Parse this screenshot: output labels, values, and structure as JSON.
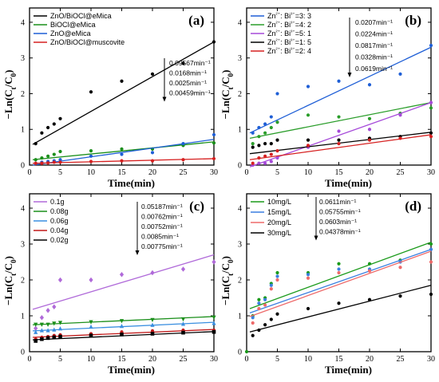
{
  "chart_data": [
    {
      "panel": "(a)",
      "type": "scatter",
      "xlabel": "Time(min)",
      "ylabel": "-Ln(Ct/C0)",
      "xlim": [
        0,
        30
      ],
      "ylim": [
        0,
        4.4
      ],
      "xticks": [
        0,
        5,
        10,
        15,
        20,
        25,
        30
      ],
      "yticks": [
        0,
        1,
        2,
        3,
        4
      ],
      "legend_position": "top-left",
      "series": [
        {
          "name": "ZnO/BiOCl@eMica",
          "color": "#000000",
          "marker": "circle",
          "x": [
            1,
            2,
            3,
            4,
            5,
            10,
            15,
            20,
            25,
            30
          ],
          "y": [
            0.6,
            0.9,
            1.05,
            1.15,
            1.3,
            2.05,
            2.35,
            2.55,
            2.85,
            3.45
          ],
          "fit": [
            0.58,
            3.45
          ]
        },
        {
          "name": "BiOCl@eMica",
          "color": "#1a8f1a",
          "marker": "circle",
          "x": [
            1,
            2,
            3,
            4,
            5,
            10,
            15,
            20,
            25,
            30
          ],
          "y": [
            0.15,
            0.2,
            0.25,
            0.3,
            0.38,
            0.4,
            0.45,
            0.45,
            0.55,
            0.62
          ],
          "fit": [
            0.15,
            0.65
          ]
        },
        {
          "name": "ZnO@eMica",
          "color": "#1f5fd6",
          "marker": "circle",
          "x": [
            1,
            2,
            3,
            4,
            5,
            10,
            15,
            20,
            25,
            30
          ],
          "y": [
            0.05,
            0.08,
            0.1,
            0.12,
            0.15,
            0.25,
            0.3,
            0.35,
            0.6,
            0.85
          ],
          "fit": [
            0.0,
            0.72
          ]
        },
        {
          "name": "ZnO/BiOCl@muscovite",
          "color": "#d62020",
          "marker": "circle",
          "x": [
            1,
            2,
            3,
            4,
            5,
            10,
            15,
            20,
            25,
            30
          ],
          "y": [
            0.05,
            0.05,
            0.06,
            0.08,
            0.08,
            0.1,
            0.12,
            0.12,
            0.15,
            0.18
          ],
          "fit": [
            0.05,
            0.18
          ]
        }
      ],
      "annotations": [
        "0.09567min⁻¹",
        "0.0168min⁻¹",
        "0.0025min⁻¹",
        "0.00459min⁻¹"
      ]
    },
    {
      "panel": "(b)",
      "type": "scatter",
      "xlabel": "Time(min)",
      "ylabel": "-Ln(Ct/C0)",
      "xlim": [
        0,
        30
      ],
      "ylim": [
        0,
        4.4
      ],
      "xticks": [
        0,
        5,
        10,
        15,
        20,
        25,
        30
      ],
      "yticks": [
        0,
        1,
        2,
        3,
        4
      ],
      "legend_position": "top-left",
      "series": [
        {
          "name": "Zn²⁺: Bi³⁺=3: 3",
          "color": "#1f5fd6",
          "marker": "circle",
          "x": [
            1,
            2,
            3,
            4,
            5,
            10,
            15,
            20,
            25,
            30
          ],
          "y": [
            0.9,
            1.05,
            1.15,
            1.35,
            2.0,
            2.2,
            2.35,
            2.25,
            2.55,
            3.35
          ],
          "fit": [
            0.9,
            3.3
          ]
        },
        {
          "name": "Zn²⁺: Bi³⁺=4: 2",
          "color": "#2a9d2a",
          "marker": "circle",
          "x": [
            1,
            2,
            3,
            4,
            5,
            10,
            15,
            20,
            25,
            30
          ],
          "y": [
            0.6,
            0.8,
            0.9,
            1.05,
            1.2,
            1.4,
            1.35,
            1.3,
            1.45,
            1.6
          ],
          "fit": [
            0.75,
            1.75
          ]
        },
        {
          "name": "Zn²⁺: Bi³⁺=5: 1",
          "color": "#a64ad9",
          "marker": "circle",
          "x": [
            1,
            2,
            3,
            4,
            5,
            10,
            15,
            20,
            25,
            30
          ],
          "y": [
            0.0,
            0.05,
            0.05,
            0.1,
            0.2,
            0.5,
            0.95,
            1.0,
            1.4,
            1.75
          ],
          "fit": [
            -0.05,
            1.75
          ]
        },
        {
          "name": "Zn²⁺: Bi³⁺=1: 5",
          "color": "#000000",
          "marker": "circle",
          "x": [
            1,
            2,
            3,
            4,
            5,
            10,
            15,
            20,
            25,
            30
          ],
          "y": [
            0.5,
            0.55,
            0.6,
            0.6,
            0.7,
            0.7,
            0.7,
            0.75,
            0.8,
            0.9
          ],
          "fit": [
            0.32,
            0.92
          ]
        },
        {
          "name": "Zn²⁺: Bi³⁺=2: 4",
          "color": "#d62020",
          "marker": "circle",
          "x": [
            1,
            2,
            3,
            4,
            5,
            10,
            15,
            20,
            25,
            30
          ],
          "y": [
            0.05,
            0.2,
            0.25,
            0.3,
            0.4,
            0.55,
            0.6,
            0.7,
            0.75,
            0.8
          ],
          "fit": [
            0.15,
            0.85
          ]
        }
      ],
      "annotations": [
        "0.0207min⁻¹",
        "0.0224min⁻¹",
        "0.0817min⁻¹",
        "0.0328min⁻¹",
        "0.0619min⁻¹"
      ]
    },
    {
      "panel": "(c)",
      "type": "scatter",
      "xlabel": "Time(min)",
      "ylabel": "-Ln(Ct/C0)",
      "xlim": [
        0,
        30
      ],
      "ylim": [
        0,
        4.4
      ],
      "xticks": [
        0,
        5,
        10,
        15,
        20,
        25,
        30
      ],
      "yticks": [
        0,
        1,
        2,
        3,
        4
      ],
      "legend_position": "top-left",
      "series": [
        {
          "name": "0.1g",
          "color": "#b06ad9",
          "marker": "diamond",
          "x": [
            1,
            2,
            3,
            4,
            5,
            10,
            15,
            20,
            25,
            30
          ],
          "y": [
            0.65,
            0.95,
            1.15,
            1.25,
            2.0,
            2.0,
            2.15,
            2.2,
            2.3,
            2.5
          ],
          "fit": [
            1.18,
            2.7
          ]
        },
        {
          "name": "0.08g",
          "color": "#1a8f1a",
          "marker": "triangle-down",
          "x": [
            1,
            2,
            3,
            4,
            5,
            10,
            15,
            20,
            25,
            30
          ],
          "y": [
            0.75,
            0.75,
            0.75,
            0.78,
            0.8,
            0.82,
            0.85,
            0.88,
            0.9,
            0.95
          ],
          "fit": [
            0.75,
            0.98
          ]
        },
        {
          "name": "0.06g",
          "color": "#3a8fe0",
          "marker": "triangle-up",
          "x": [
            1,
            2,
            3,
            4,
            5,
            10,
            15,
            20,
            25,
            30
          ],
          "y": [
            0.55,
            0.6,
            0.6,
            0.62,
            0.65,
            0.7,
            0.72,
            0.75,
            0.78,
            0.8
          ],
          "fit": [
            0.58,
            0.82
          ]
        },
        {
          "name": "0.04g",
          "color": "#c01818",
          "marker": "circle",
          "x": [
            1,
            2,
            3,
            4,
            5,
            10,
            15,
            20,
            25,
            30
          ],
          "y": [
            0.35,
            0.4,
            0.42,
            0.45,
            0.47,
            0.5,
            0.55,
            0.58,
            0.6,
            0.6
          ],
          "fit": [
            0.4,
            0.62
          ]
        },
        {
          "name": "0.02g",
          "color": "#000000",
          "marker": "square",
          "x": [
            1,
            2,
            3,
            4,
            5,
            10,
            15,
            20,
            25,
            30
          ],
          "y": [
            0.3,
            0.35,
            0.38,
            0.4,
            0.42,
            0.45,
            0.48,
            0.5,
            0.53,
            0.55
          ],
          "fit": [
            0.33,
            0.56
          ]
        }
      ],
      "annotations": [
        "0.05187min⁻¹",
        "0.00762min⁻¹",
        "0.00752min⁻¹",
        "0.0085min⁻¹",
        "0.00775min⁻¹"
      ]
    },
    {
      "panel": "(d)",
      "type": "scatter",
      "xlabel": "Time(min)",
      "ylabel": "-Ln(Ct/C0)",
      "xlim": [
        0,
        30
      ],
      "ylim": [
        0,
        4.4
      ],
      "xticks": [
        0,
        5,
        10,
        15,
        20,
        25,
        30
      ],
      "yticks": [
        0,
        1,
        2,
        3,
        4
      ],
      "legend_position": "top-left",
      "series": [
        {
          "name": "10mg/L",
          "color": "#1a9a1a",
          "marker": "circle",
          "x": [
            0,
            1,
            2,
            3,
            4,
            5,
            10,
            15,
            20,
            25,
            30
          ],
          "y": [
            0.0,
            1.0,
            1.45,
            1.5,
            1.9,
            2.2,
            2.2,
            2.45,
            2.45,
            2.55,
            3.0
          ],
          "fit": [
            1.2,
            3.05
          ]
        },
        {
          "name": "15mg/L",
          "color": "#3a7fe0",
          "marker": "circle",
          "x": [
            1,
            2,
            3,
            4,
            5,
            10,
            15,
            20,
            25,
            30
          ],
          "y": [
            0.95,
            1.35,
            1.45,
            1.85,
            2.1,
            2.15,
            2.3,
            2.3,
            2.5,
            2.85
          ],
          "fit": [
            1.08,
            2.85
          ]
        },
        {
          "name": "20mg/L",
          "color": "#ee6a6a",
          "marker": "circle",
          "x": [
            1,
            2,
            3,
            4,
            5,
            10,
            15,
            20,
            25,
            30
          ],
          "y": [
            0.8,
            1.2,
            1.3,
            1.75,
            2.0,
            2.05,
            2.2,
            2.25,
            2.35,
            2.5
          ],
          "fit": [
            0.98,
            2.8
          ]
        },
        {
          "name": "30mg/L",
          "color": "#000000",
          "marker": "circle",
          "x": [
            1,
            2,
            3,
            4,
            5,
            10,
            15,
            20,
            25,
            30
          ],
          "y": [
            0.45,
            0.6,
            0.75,
            0.9,
            1.05,
            1.2,
            1.35,
            1.45,
            1.55,
            1.6
          ],
          "fit": [
            0.55,
            1.85
          ]
        }
      ],
      "annotations": [
        "0.0611min⁻¹",
        "0.05755min⁻¹",
        "0.0603min⁻¹",
        "0.04378min⁻¹"
      ]
    }
  ]
}
